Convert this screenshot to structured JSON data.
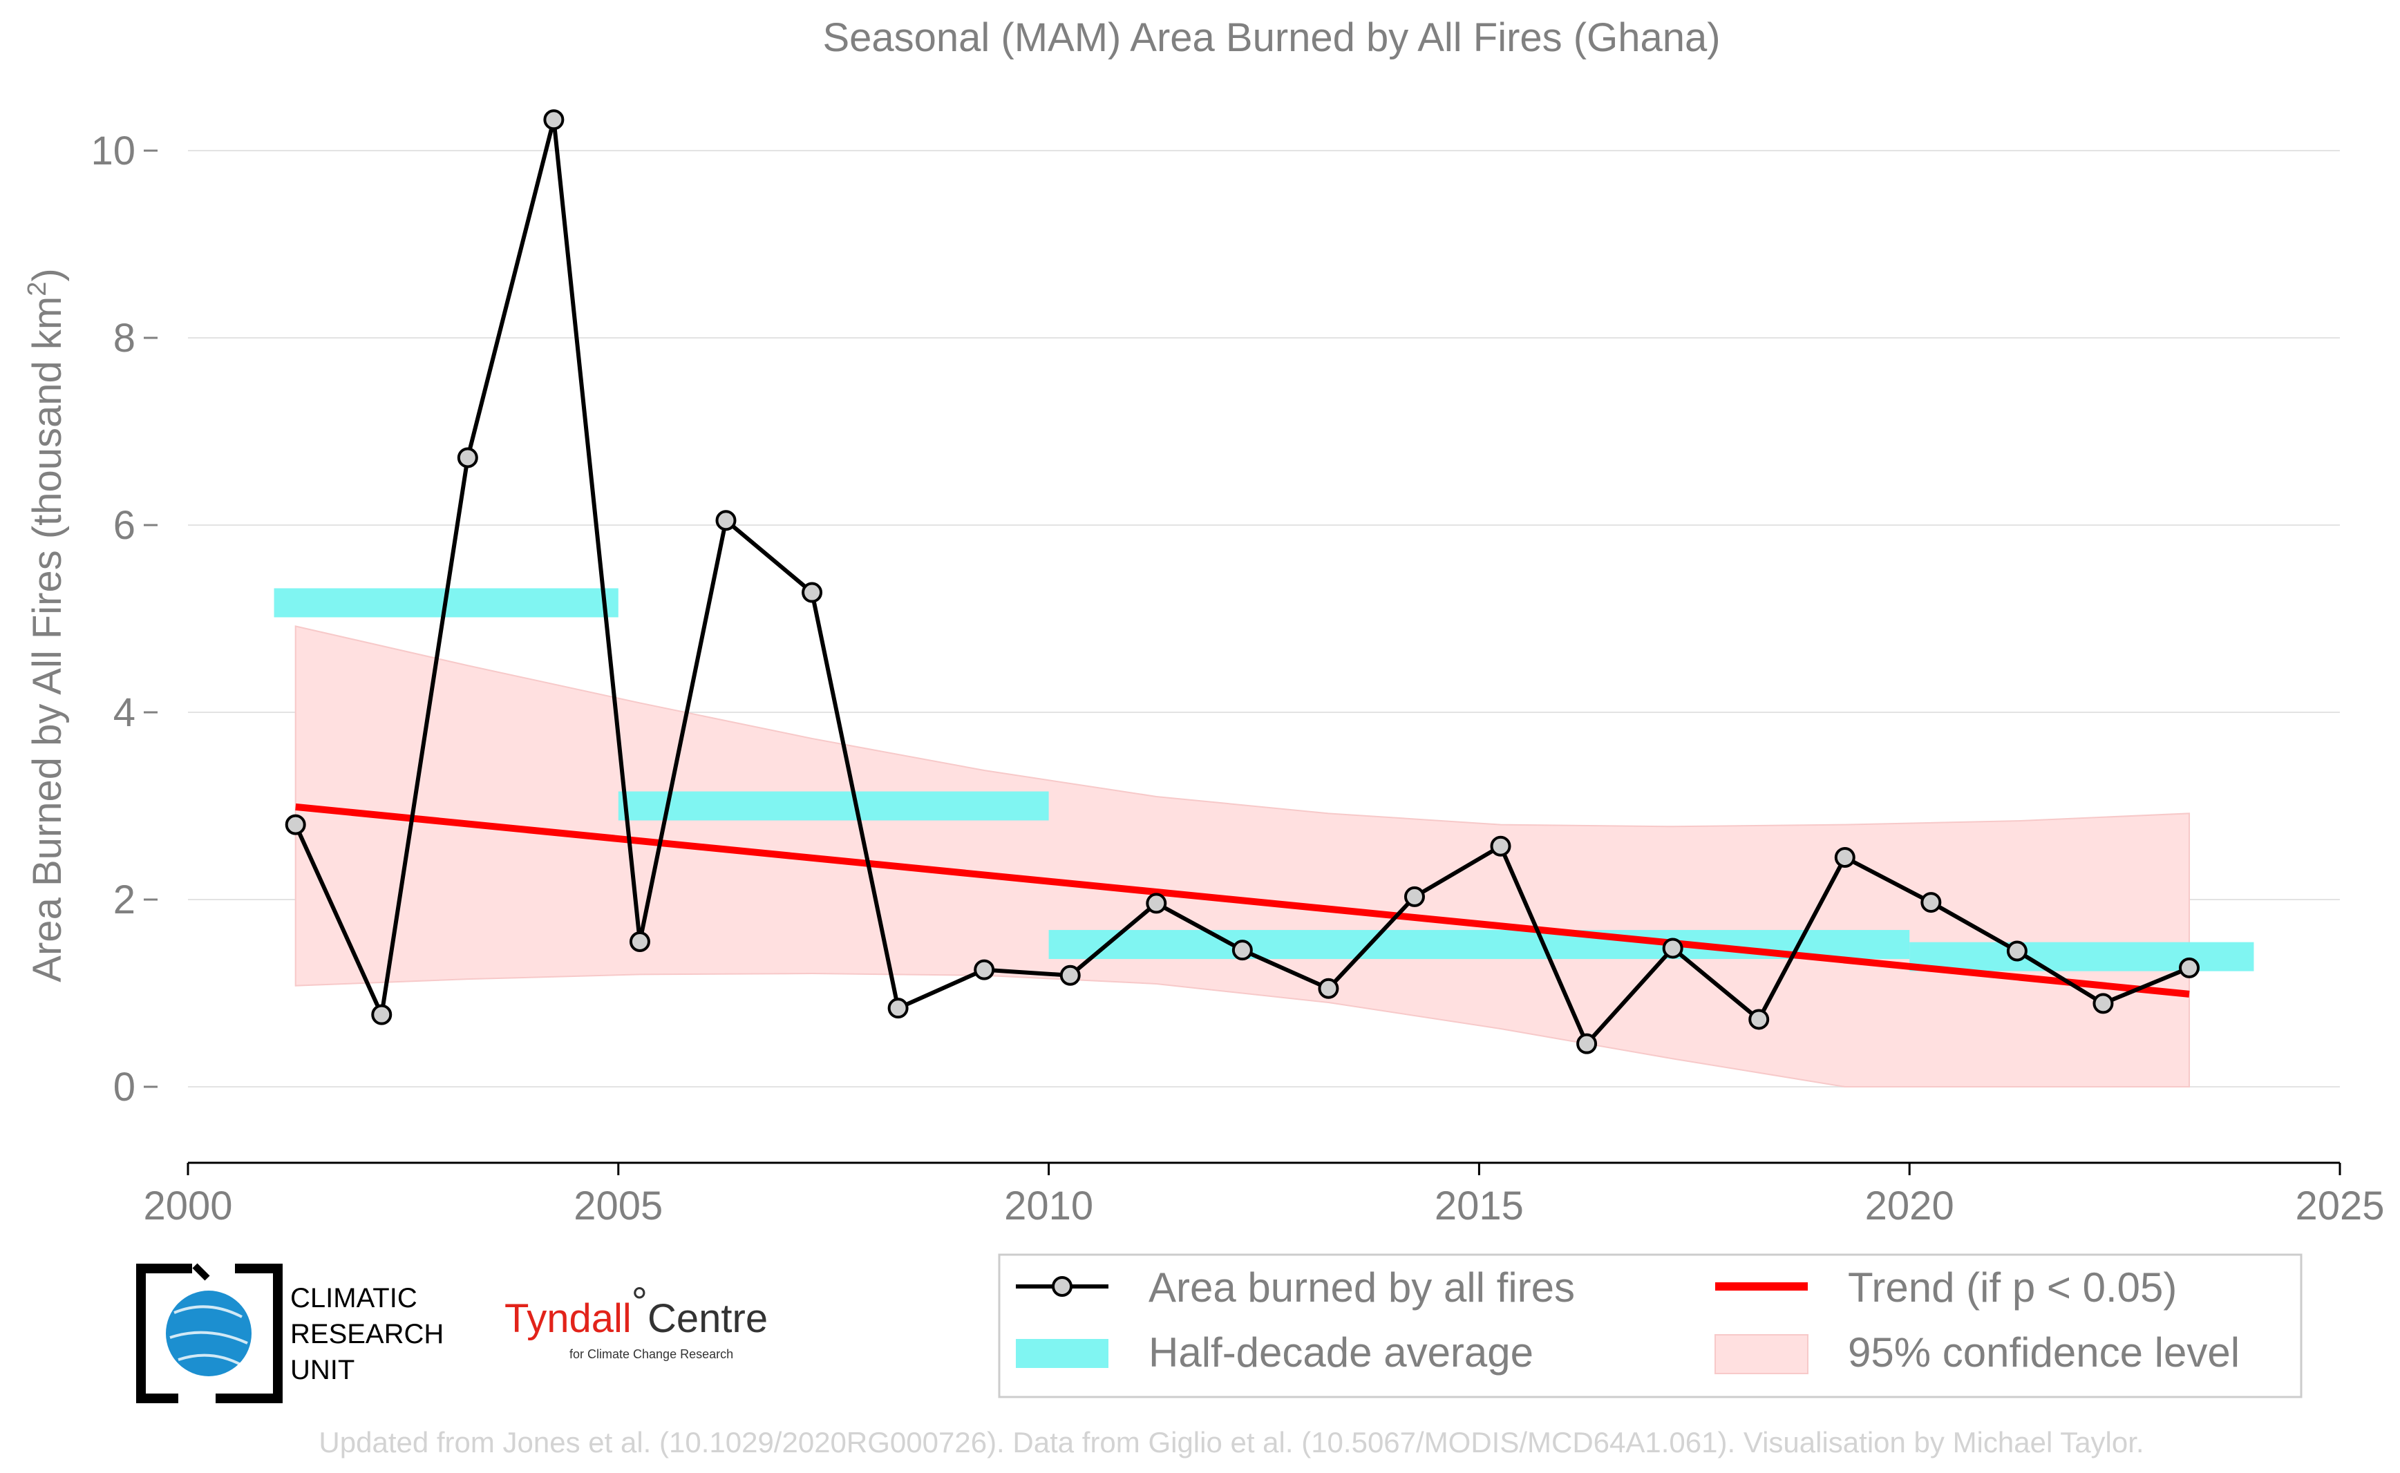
{
  "chart_data": {
    "type": "line",
    "title": "Seasonal (MAM) Area Burned by All Fires (Ghana)",
    "ylabel": "Area Burned by All Fires (thousand km²)",
    "ylabel_main": "Area Burned by All Fires (thousand km",
    "ylabel_sup": "2",
    "ylabel_end": ")",
    "xlabel": "",
    "xlim": [
      2000,
      2025
    ],
    "ylim": [
      -0.85,
      10.7
    ],
    "xticks": [
      2000,
      2005,
      2010,
      2015,
      2020,
      2025
    ],
    "yticks": [
      0,
      2,
      4,
      6,
      8,
      10
    ],
    "series": [
      {
        "name": "Area burned by all fires",
        "color": "#000000",
        "marker_color": "#d0d0d0",
        "x": [
          2001.25,
          2002.25,
          2003.25,
          2004.25,
          2005.25,
          2006.25,
          2007.25,
          2008.25,
          2009.25,
          2010.25,
          2011.25,
          2012.25,
          2013.25,
          2014.25,
          2015.25,
          2016.25,
          2017.25,
          2018.25,
          2019.25,
          2020.25,
          2021.25,
          2022.25,
          2023.25
        ],
        "values": [
          2.8,
          0.77,
          6.72,
          10.33,
          1.55,
          6.05,
          5.28,
          0.84,
          1.25,
          1.19,
          1.96,
          1.46,
          1.05,
          2.03,
          2.57,
          0.46,
          1.48,
          0.72,
          2.45,
          1.97,
          1.45,
          0.89,
          1.27
        ]
      }
    ],
    "half_decade_average": {
      "name": "Half-decade average",
      "color": "#80f5f2",
      "segments": [
        {
          "x0": 2001,
          "x1": 2005,
          "value": 5.17
        },
        {
          "x0": 2005,
          "x1": 2010,
          "value": 3.0
        },
        {
          "x0": 2010,
          "x1": 2020,
          "value": 1.52
        },
        {
          "x0": 2020,
          "x1": 2024,
          "value": 1.39
        }
      ]
    },
    "trend": {
      "name": "Trend (if p < 0.05)",
      "color": "#ff0000",
      "x": [
        2001.25,
        2023.25
      ],
      "values": [
        2.99,
        0.99
      ]
    },
    "confidence": {
      "name": "95% confidence level",
      "color": "#ffe0e0",
      "x": [
        2001.25,
        2003.25,
        2005.25,
        2007.25,
        2009.25,
        2011.25,
        2013.25,
        2015.25,
        2017.25,
        2019.25,
        2021.25,
        2023.25
      ],
      "upper": [
        4.92,
        4.5,
        4.1,
        3.72,
        3.38,
        3.1,
        2.92,
        2.8,
        2.78,
        2.8,
        2.84,
        2.92
      ],
      "lower": [
        1.08,
        1.15,
        1.2,
        1.21,
        1.19,
        1.1,
        0.9,
        0.62,
        0.3,
        0.0,
        0.0,
        0.0
      ]
    },
    "legend": {
      "position": "bottom-right",
      "items": [
        "Area burned by all fires",
        "Trend (if p < 0.05)",
        "Half-decade average",
        "95% confidence level"
      ]
    },
    "grid": true
  },
  "logos": {
    "cru_lines": [
      "CLIMATIC",
      "RESEARCH",
      "UNIT"
    ],
    "tyndall_red": "Tyndall",
    "tyndall_degree": "°",
    "tyndall_dark": "Centre",
    "tyndall_sub": "for Climate Change Research"
  },
  "credit": "Updated from Jones et al. (10.1029/2020RG000726). Data from Giglio et al. (10.5067/MODIS/MCD64A1.061). Visualisation by Michael Taylor."
}
